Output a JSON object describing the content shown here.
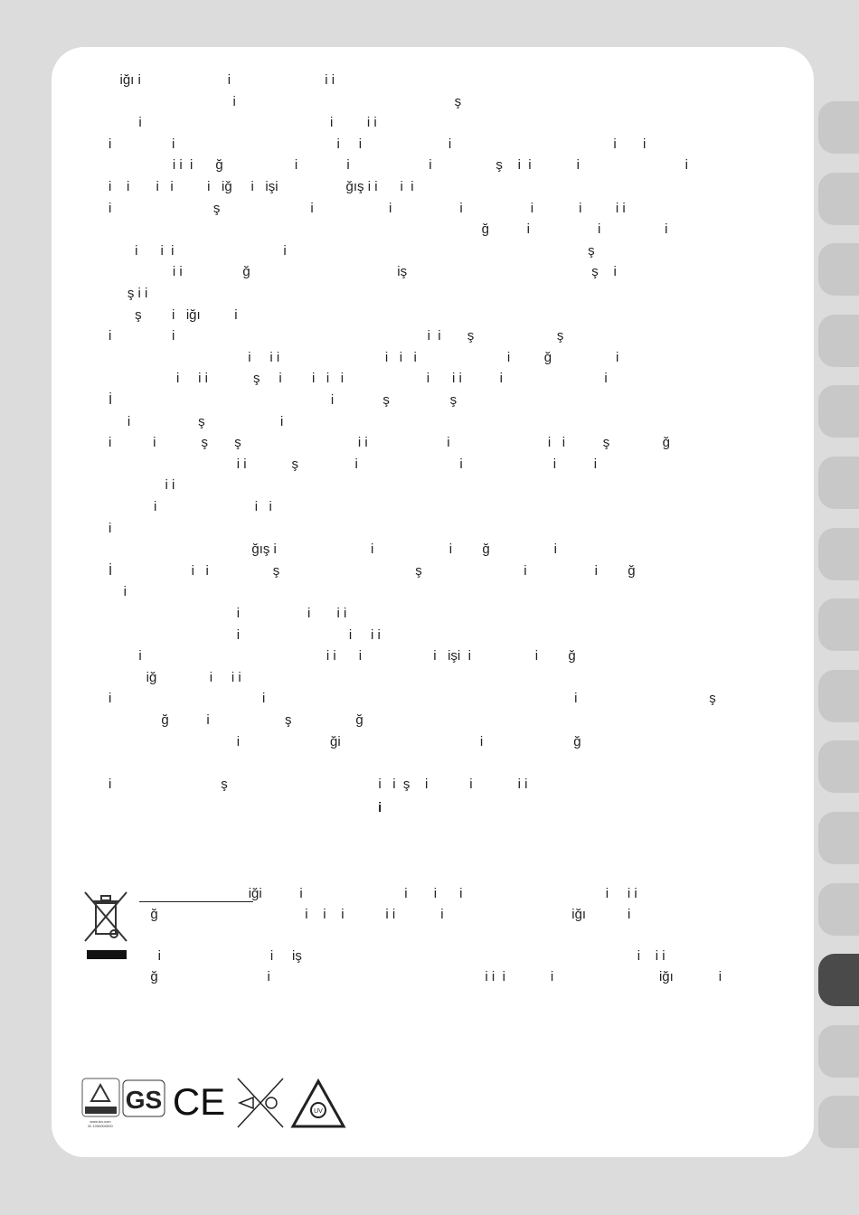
{
  "body_lines": [
    "   iğı i                       i                         i i",
    "                                 i                                                          ş",
    "        i                                                  i         i i",
    "i                i                                           i     i                       i                                           i       i",
    "                 i i  i      ğ                   i             i                     i                 ş    i  i            i                            i",
    "i    i       i   i         i   iğ     i   işi                  ğış i i      i  i",
    "i                           ş                        i                    i                  i                  i            i         i i",
    "                                                                                                   ğ          i                  i                 i",
    "       i      i  i                             i                                                                                ş",
    "                 i i                ğ                                       iş                                                 ş    i",
    "     ş i i",
    "       ş        i   iğı         i",
    "i                i                                                                   i  i       ş                      ş",
    "                                     i     i i                            i   i   i                        i         ğ                 i",
    "                  i     i i            ş     i        i   i   i                      i      i i          i                           i",
    "İ                                                          i             ş                ş",
    "     i                  ş                    i",
    "i           i            ş       ş                               i i                     i                          i   i          ş              ğ",
    "                                  i i            ş               i                           i                        i          i",
    "               i i",
    "            i                          i   i",
    "i",
    "                                      ğış i                         i                    i        ğ                 i",
    "İ                     i   i                 ş                                    ş                           i                  i        ğ",
    "    i",
    "                                  i                  i       i i",
    "                                  i                             i     i i",
    "        i                                                 i i      i                   i   işi  i                 i        ğ",
    "          iğ              i     i i",
    "i                                        i                                                                                  i                                   ş",
    "              ğ          i                    ş                 ğ",
    "                                  i                        ği                                     i                        ğ",
    "",
    "i                             ş                                        i   i  ş    i           i            i i"
  ],
  "bold_mark": "i",
  "weee_lines": [
    "                            iği          i                           i       i      i                                      i     i i",
    "  ğ                                       i    i    i           i i            i                                  iğı           i",
    "",
    "    i                             i     iş                                                                                         i    i i",
    "  ğ                             i                                                         i i  i            i                            iğı            i"
  ],
  "logos": [
    "TÜV Rheinland Zertifiziert",
    "GS geprüfte Sicherheit",
    "CE",
    "eye-laser-warning",
    "UV warning"
  ],
  "tabs_count": 15,
  "active_tab": 13,
  "colors": {
    "background": "#dcdcdc",
    "tab": "#c8c8c8",
    "active_tab": "#4a4a4a"
  }
}
